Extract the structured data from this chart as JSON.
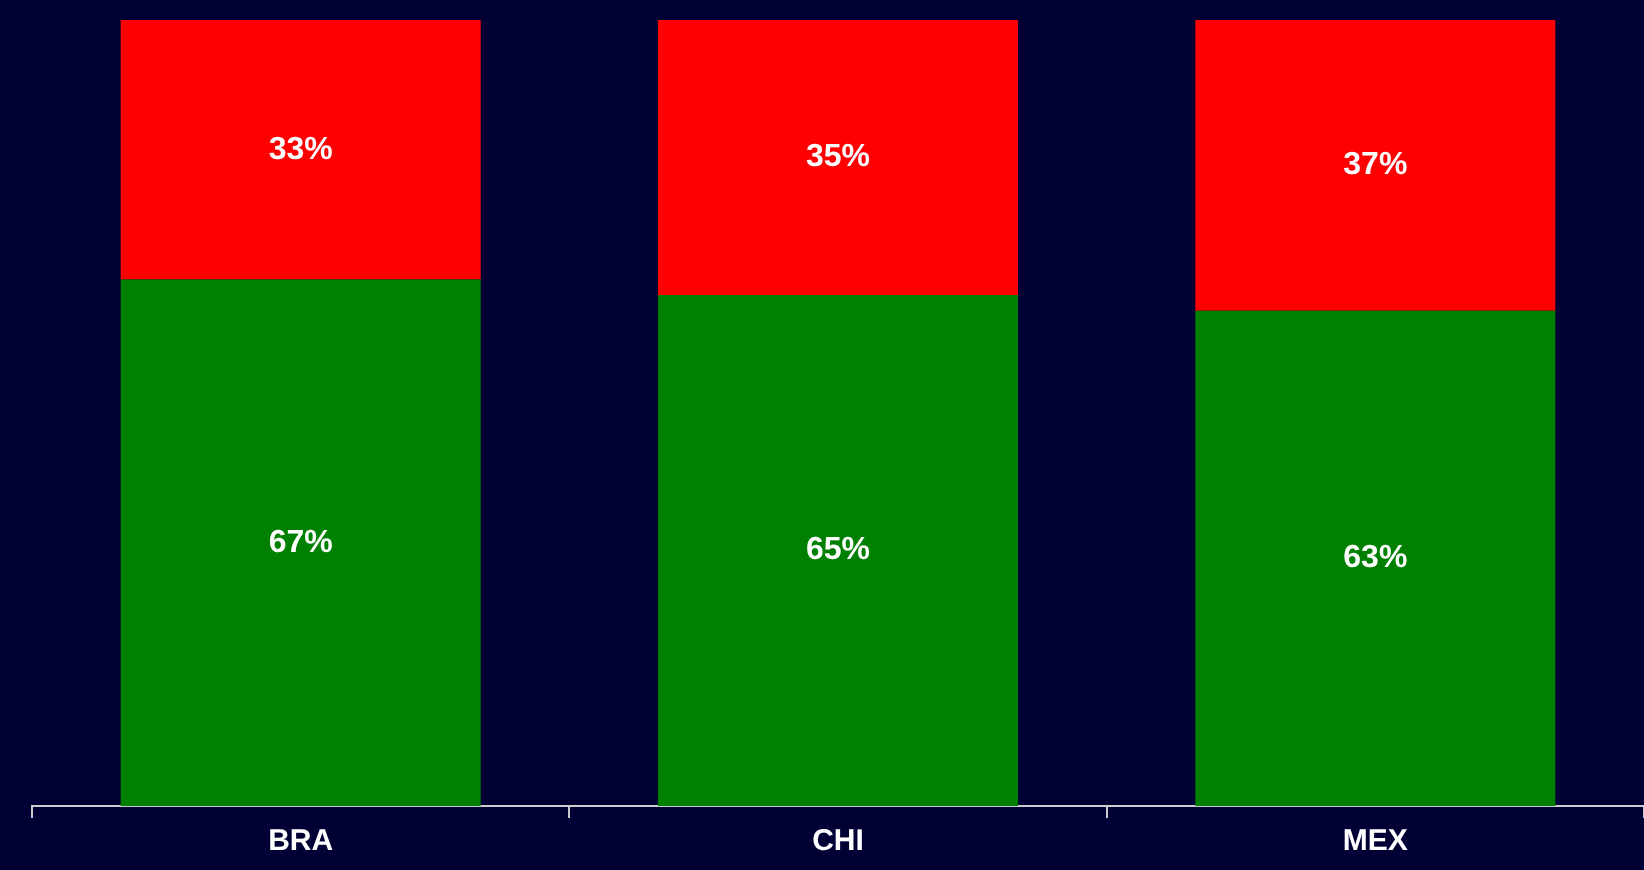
{
  "chart_data": {
    "type": "bar",
    "stacked": true,
    "categories": [
      "BRA",
      "CHI",
      "MEX"
    ],
    "legend": false,
    "series": [
      {
        "color": "#008000",
        "values": [
          67,
          65,
          63
        ],
        "value_labels": [
          "67%",
          "65%",
          "63%"
        ]
      },
      {
        "color": "#ff0000",
        "values": [
          33,
          35,
          37
        ],
        "value_labels": [
          "33%",
          "35%",
          "37%"
        ]
      }
    ]
  }
}
